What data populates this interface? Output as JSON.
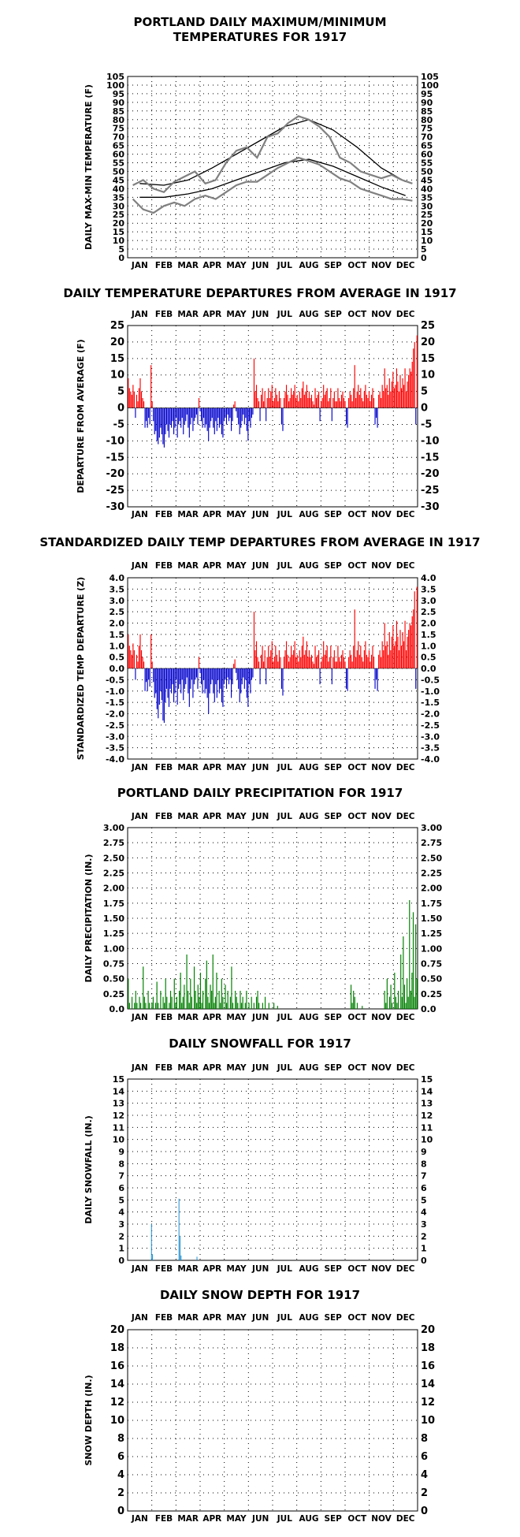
{
  "colors": {
    "temp_trace": "#808080",
    "normal_lines": "#000000",
    "positive": "#ff0000",
    "negative": "#0000cc",
    "precip": "#008000",
    "snow": "#1e90d0",
    "grid": "#000000"
  },
  "months": [
    "JAN",
    "FEB",
    "MAR",
    "APR",
    "MAY",
    "JUN",
    "JUL",
    "AUG",
    "SEP",
    "OCT",
    "NOV",
    "DEC"
  ],
  "chart_data": [
    {
      "type": "line",
      "title_lines": [
        "PORTLAND DAILY MAXIMUM/MINIMUM",
        "TEMPERATURES FOR 1917"
      ],
      "ylabel": "DAILY MAX-MIN TEMPERATURE (F)",
      "ylim": [
        0,
        105
      ],
      "yticks": [
        "0",
        "5",
        "10",
        "15",
        "20",
        "25",
        "30",
        "35",
        "40",
        "45",
        "50",
        "55",
        "60",
        "65",
        "70",
        "75",
        "80",
        "85",
        "90",
        "95",
        "100",
        "105"
      ],
      "grid": true,
      "months_position": "bottom",
      "series": [
        {
          "name": "",
          "kind": "normal_high",
          "values": [
            43,
            42,
            45,
            52,
            60,
            68,
            76,
            80,
            74,
            64,
            52,
            44
          ]
        },
        {
          "name": "",
          "kind": "normal_low",
          "values": [
            35,
            35,
            37,
            40,
            45,
            50,
            55,
            57,
            53,
            47,
            41,
            36
          ]
        },
        {
          "name": "",
          "kind": "daily_high",
          "values": [
            42,
            45,
            40,
            38,
            44,
            47,
            50,
            43,
            45,
            55,
            62,
            64,
            58,
            70,
            72,
            78,
            82,
            80,
            76,
            70,
            58,
            55,
            50,
            48,
            46,
            48,
            45,
            43
          ]
        },
        {
          "name": "",
          "kind": "daily_low",
          "values": [
            34,
            28,
            26,
            30,
            32,
            30,
            34,
            36,
            34,
            38,
            42,
            44,
            44,
            48,
            52,
            55,
            58,
            56,
            54,
            50,
            46,
            44,
            40,
            38,
            36,
            34,
            34,
            33
          ]
        }
      ]
    },
    {
      "type": "bar",
      "title": "DAILY TEMPERATURE DEPARTURES FROM AVERAGE IN 1917",
      "ylabel": "DEPARTURE FROM AVERAGE (F)",
      "ylim": [
        -30,
        25
      ],
      "yticks": [
        "-30",
        "-25",
        "-20",
        "-15",
        "-10",
        "-5",
        "0",
        "5",
        "10",
        "15",
        "20",
        "25"
      ],
      "grid": true,
      "months_position": "both",
      "values": [
        9,
        6,
        5,
        4,
        7,
        5,
        -3,
        4,
        2,
        6,
        9,
        5,
        3,
        2,
        -6,
        -4,
        -6,
        -3,
        -5,
        13,
        2,
        -4,
        -8,
        -7,
        -10,
        -11,
        -9,
        -6,
        -8,
        -11,
        -12,
        -8,
        -5,
        -7,
        -9,
        -5,
        -6,
        -4,
        -8,
        -6,
        -3,
        -9,
        -5,
        -4,
        -6,
        -3,
        -8,
        -5,
        -4,
        -2,
        -6,
        -9,
        -5,
        -3,
        -7,
        -4,
        -3,
        -2,
        -5,
        3,
        -1,
        -4,
        -6,
        -3,
        -6,
        -5,
        -7,
        -10,
        -6,
        -4,
        -3,
        -6,
        -8,
        -4,
        -7,
        -3,
        -6,
        -5,
        -8,
        -9,
        -4,
        -3,
        -5,
        -2,
        -4,
        -3,
        -7,
        -4,
        1,
        2,
        -1,
        -3,
        -5,
        -8,
        -6,
        -4,
        -2,
        -5,
        -3,
        -7,
        -10,
        -4,
        -6,
        -3,
        -2,
        15,
        5,
        7,
        3,
        2,
        -4,
        4,
        6,
        2,
        5,
        -4,
        3,
        6,
        3,
        5,
        7,
        2,
        3,
        6,
        4,
        2,
        5,
        3,
        -5,
        -7,
        3,
        5,
        7,
        4,
        2,
        3,
        6,
        4,
        5,
        7,
        3,
        4,
        2,
        5,
        3,
        6,
        8,
        4,
        5,
        7,
        3,
        5,
        3,
        4,
        2,
        1,
        6,
        3,
        4,
        5,
        -4,
        2,
        3,
        7,
        4,
        5,
        6,
        2,
        3,
        6,
        -4,
        3,
        5,
        2,
        2,
        6,
        3,
        2,
        4,
        5,
        3,
        2,
        -5,
        -6,
        3,
        5,
        4,
        2,
        6,
        13,
        3,
        5,
        7,
        4,
        6,
        3,
        2,
        5,
        7,
        4,
        3,
        5,
        2,
        4,
        6,
        3,
        -5,
        -3,
        -6,
        4,
        5,
        3,
        7,
        5,
        12,
        6,
        7,
        4,
        9,
        5,
        8,
        11,
        6,
        7,
        12,
        8,
        5,
        10,
        6,
        9,
        7,
        12,
        5,
        8,
        10,
        12,
        11,
        14,
        18,
        20,
        -5,
        22
      ]
    },
    {
      "type": "bar",
      "title": "STANDARDIZED DAILY TEMP DEPARTURES FROM AVERAGE IN 1917",
      "ylabel": "STANDARDIZED TEMP DEPARTURE (Z)",
      "ylim": [
        -4,
        4
      ],
      "yticks": [
        "-4.0",
        "-3.5",
        "-3.0",
        "-2.5",
        "-2.0",
        "-1.5",
        "-1.0",
        "-0.5",
        "0.0",
        "0.5",
        "1.0",
        "1.5",
        "2.0",
        "2.5",
        "3.0",
        "3.5",
        "4.0"
      ],
      "grid": true,
      "months_position": "both",
      "values": [
        1.5,
        1.0,
        0.8,
        0.6,
        1.1,
        0.8,
        -0.5,
        0.6,
        0.3,
        1.0,
        1.5,
        0.8,
        0.5,
        0.3,
        -1.0,
        -0.6,
        -1.0,
        -0.5,
        -0.8,
        1.5,
        0.3,
        -0.6,
        -1.3,
        -1.1,
        -1.8,
        -2.2,
        -1.6,
        -1.0,
        -1.4,
        -2.3,
        -2.4,
        -1.5,
        -0.9,
        -1.3,
        -1.7,
        -0.9,
        -1.1,
        -0.7,
        -1.5,
        -1.1,
        -0.5,
        -1.6,
        -0.9,
        -0.7,
        -1.1,
        -0.5,
        -1.4,
        -0.9,
        -0.7,
        -0.4,
        -1.1,
        -1.7,
        -0.9,
        -0.5,
        -1.3,
        -0.7,
        -0.5,
        -0.4,
        -0.9,
        0.5,
        -0.2,
        -0.7,
        -1.1,
        -0.5,
        -1.1,
        -0.9,
        -1.3,
        -2.0,
        -1.1,
        -0.7,
        -0.5,
        -1.1,
        -1.5,
        -0.7,
        -1.3,
        -0.5,
        -1.1,
        -0.9,
        -1.5,
        -1.7,
        -0.7,
        -0.5,
        -0.9,
        -0.4,
        -0.7,
        -0.5,
        -1.3,
        -0.7,
        0.2,
        0.4,
        -0.2,
        -0.5,
        -0.9,
        -1.5,
        -1.1,
        -0.7,
        -0.4,
        -0.9,
        -0.5,
        -1.3,
        -1.7,
        -0.7,
        -1.1,
        -0.5,
        -0.4,
        2.5,
        0.8,
        1.2,
        0.5,
        0.3,
        -0.7,
        0.6,
        1.0,
        0.3,
        0.8,
        -0.7,
        0.5,
        1.0,
        0.5,
        0.8,
        1.2,
        0.3,
        0.5,
        1.0,
        0.6,
        0.3,
        0.8,
        0.5,
        -0.9,
        -1.2,
        0.5,
        0.8,
        1.2,
        0.6,
        0.3,
        0.5,
        1.0,
        0.6,
        0.8,
        1.2,
        0.5,
        0.6,
        0.3,
        0.8,
        0.5,
        1.0,
        1.4,
        0.6,
        0.8,
        1.2,
        0.5,
        0.8,
        0.5,
        0.6,
        0.3,
        0.2,
        1.0,
        0.5,
        0.6,
        0.8,
        -0.7,
        0.3,
        0.5,
        1.2,
        0.6,
        0.8,
        1.0,
        0.3,
        0.5,
        1.0,
        -0.7,
        0.5,
        0.8,
        0.3,
        0.3,
        1.0,
        0.5,
        0.3,
        0.6,
        0.8,
        0.5,
        0.3,
        -0.9,
        -1.0,
        0.5,
        0.8,
        0.6,
        0.3,
        1.0,
        2.6,
        0.5,
        0.8,
        1.2,
        0.6,
        1.0,
        0.5,
        0.3,
        0.8,
        1.2,
        0.6,
        0.5,
        0.8,
        0.3,
        0.6,
        1.0,
        0.5,
        -0.9,
        -0.5,
        -1.0,
        0.6,
        0.8,
        0.5,
        1.2,
        0.8,
        2.0,
        1.0,
        1.2,
        0.6,
        1.6,
        0.8,
        1.4,
        1.9,
        1.0,
        1.2,
        2.1,
        1.4,
        0.8,
        1.7,
        1.0,
        1.6,
        1.2,
        2.1,
        0.8,
        1.4,
        1.7,
        2.0,
        1.9,
        2.3,
        2.6,
        3.4,
        -0.9,
        3.6
      ]
    },
    {
      "type": "bar",
      "title": "PORTLAND DAILY PRECIPITATION FOR 1917",
      "ylabel": "DAILY PRECIPITATION (IN.)",
      "ylim": [
        0,
        3
      ],
      "yticks": [
        "0.0",
        "0.25",
        "0.50",
        "0.75",
        "1.00",
        "1.25",
        "1.50",
        "1.75",
        "2.00",
        "2.25",
        "2.50",
        "2.75",
        "3.00"
      ],
      "grid": true,
      "months_position": "both",
      "values": [
        0.5,
        0.1,
        0.0,
        0.2,
        0.0,
        0.1,
        0.3,
        0.1,
        0.0,
        0.2,
        0.1,
        0.0,
        0.7,
        0.2,
        0.1,
        0.0,
        0.3,
        0.1,
        0.0,
        0.1,
        0.2,
        0.0,
        0.1,
        0.45,
        0.1,
        0.0,
        0.3,
        0.0,
        0.2,
        0.1,
        0.5,
        0.2,
        0.0,
        0.1,
        0.3,
        0.2,
        0.0,
        0.5,
        0.1,
        0.2,
        0.0,
        0.3,
        0.6,
        0.1,
        0.2,
        0.4,
        0.0,
        0.9,
        0.3,
        0.1,
        0.5,
        0.2,
        0.0,
        0.7,
        0.3,
        0.1,
        0.4,
        0.2,
        0.6,
        0.1,
        0.3,
        0.0,
        0.5,
        0.8,
        0.2,
        0.1,
        0.4,
        0.3,
        0.9,
        0.1,
        0.2,
        0.6,
        0.0,
        0.3,
        0.1,
        0.5,
        0.2,
        0.0,
        0.4,
        0.1,
        0.3,
        0.0,
        0.2,
        0.7,
        0.1,
        0.0,
        0.3,
        0.2,
        0.1,
        0.0,
        0.3,
        0.1,
        0.2,
        0.0,
        0.1,
        0.3,
        0.0,
        0.1,
        0.0,
        0.2,
        0.0,
        0.1,
        0.0,
        0.2,
        0.3,
        0.1,
        0.0,
        0.0,
        0.1,
        0.0,
        0.2,
        0.0,
        0.0,
        0.1,
        0.0,
        0.0,
        0.0,
        0.1,
        0.0,
        0.0,
        0.05,
        0.0,
        0.0,
        0.0,
        0.0,
        0.0,
        0.0,
        0.0,
        0.0,
        0.0,
        0.0,
        0.0,
        0.0,
        0.0,
        0.0,
        0.0,
        0.0,
        0.0,
        0.0,
        0.0,
        0.0,
        0.0,
        0.0,
        0.0,
        0.0,
        0.0,
        0.0,
        0.0,
        0.0,
        0.0,
        0.0,
        0.0,
        0.0,
        0.0,
        0.0,
        0.0,
        0.0,
        0.0,
        0.0,
        0.0,
        0.0,
        0.0,
        0.0,
        0.0,
        0.0,
        0.0,
        0.0,
        0.0,
        0.0,
        0.0,
        0.0,
        0.0,
        0.0,
        0.0,
        0.0,
        0.0,
        0.0,
        0.0,
        0.0,
        0.4,
        0.1,
        0.3,
        0.2,
        0.0,
        0.1,
        0.0,
        0.0,
        0.0,
        0.05,
        0.0,
        0.0,
        0.0,
        0.0,
        0.0,
        0.0,
        0.0,
        0.0,
        0.0,
        0.0,
        0.0,
        0.0,
        0.0,
        0.0,
        0.0,
        0.0,
        0.0,
        0.3,
        0.1,
        0.5,
        0.0,
        0.2,
        0.4,
        0.1,
        0.0,
        0.6,
        0.2,
        0.1,
        0.3,
        0.0,
        0.9,
        0.2,
        1.2,
        0.4,
        0.1,
        0.5,
        0.2,
        1.8,
        0.3,
        0.6,
        1.6,
        0.2,
        1.4,
        0.5
      ]
    },
    {
      "type": "bar",
      "title": "DAILY SNOWFALL FOR 1917",
      "ylabel": "DAILY SNOWFALL (IN.)",
      "ylim": [
        0,
        15
      ],
      "yticks": [
        "0",
        "1",
        "2",
        "3",
        "4",
        "5",
        "6",
        "7",
        "8",
        "9",
        "10",
        "11",
        "12",
        "13",
        "14",
        "15"
      ],
      "grid": true,
      "months_position": "both",
      "values": [
        0,
        0,
        0,
        0,
        0,
        0,
        0,
        0,
        0,
        0,
        0,
        0,
        0,
        0,
        0,
        0,
        0,
        0,
        0,
        0,
        0,
        0,
        3.0,
        0.5,
        0,
        0,
        0,
        0,
        0,
        0,
        0,
        0,
        0,
        0,
        0,
        0,
        0,
        0,
        0,
        0,
        0,
        0,
        0,
        0,
        0,
        0,
        0,
        0,
        5.1,
        2.0,
        0.4,
        0,
        0,
        0,
        0,
        0,
        0,
        0,
        0,
        0,
        0,
        0,
        0,
        0,
        0,
        0.3,
        0,
        0,
        0,
        0,
        0,
        0,
        0,
        0,
        0,
        0,
        0,
        0,
        0,
        0,
        0,
        0,
        0,
        0,
        0,
        0,
        0,
        0,
        0,
        0,
        0,
        0,
        0,
        0,
        0,
        0,
        0,
        0,
        0,
        0,
        0,
        0,
        0,
        0,
        0,
        0,
        0,
        0,
        0,
        0,
        0,
        0,
        0,
        0,
        0,
        0,
        0,
        0,
        0,
        0,
        0,
        0,
        0,
        0,
        0,
        0,
        0,
        0,
        0,
        0,
        0,
        0,
        0,
        0,
        0,
        0,
        0,
        0,
        0,
        0,
        0,
        0,
        0,
        0,
        0,
        0,
        0,
        0,
        0,
        0,
        0,
        0,
        0,
        0,
        0,
        0,
        0,
        0,
        0,
        0,
        0,
        0,
        0,
        0,
        0,
        0,
        0,
        0,
        0,
        0,
        0,
        0,
        0,
        0,
        0,
        0,
        0,
        0,
        0,
        0,
        0,
        0,
        0,
        0,
        0,
        0,
        0,
        0,
        0,
        0,
        0,
        0,
        0,
        0,
        0,
        0,
        0,
        0,
        0,
        0,
        0,
        0,
        0,
        0,
        0,
        0,
        0,
        0,
        0,
        0,
        0,
        0,
        0,
        0,
        0,
        0,
        0,
        0,
        0,
        0,
        0,
        0,
        0,
        0,
        0,
        0,
        0,
        0,
        0,
        0,
        0,
        0,
        0,
        0,
        0,
        0,
        0,
        0,
        0,
        0,
        0,
        0,
        0,
        0,
        0,
        0,
        0,
        0,
        0,
        0,
        0,
        0,
        0,
        0,
        0,
        0,
        0,
        0,
        0,
        0,
        0,
        0,
        0,
        0,
        0,
        0,
        0,
        0,
        0,
        0,
        0,
        0,
        0,
        0
      ]
    },
    {
      "type": "bar",
      "title": "DAILY SNOW DEPTH FOR 1917",
      "ylabel": "SNOW DEPTH (IN.)",
      "ylim": [
        0,
        20
      ],
      "yticks": [
        "0",
        "2",
        "4",
        "6",
        "8",
        "10",
        "12",
        "14",
        "16",
        "18",
        "20"
      ],
      "grid": true,
      "months_position": "both",
      "values": []
    }
  ]
}
